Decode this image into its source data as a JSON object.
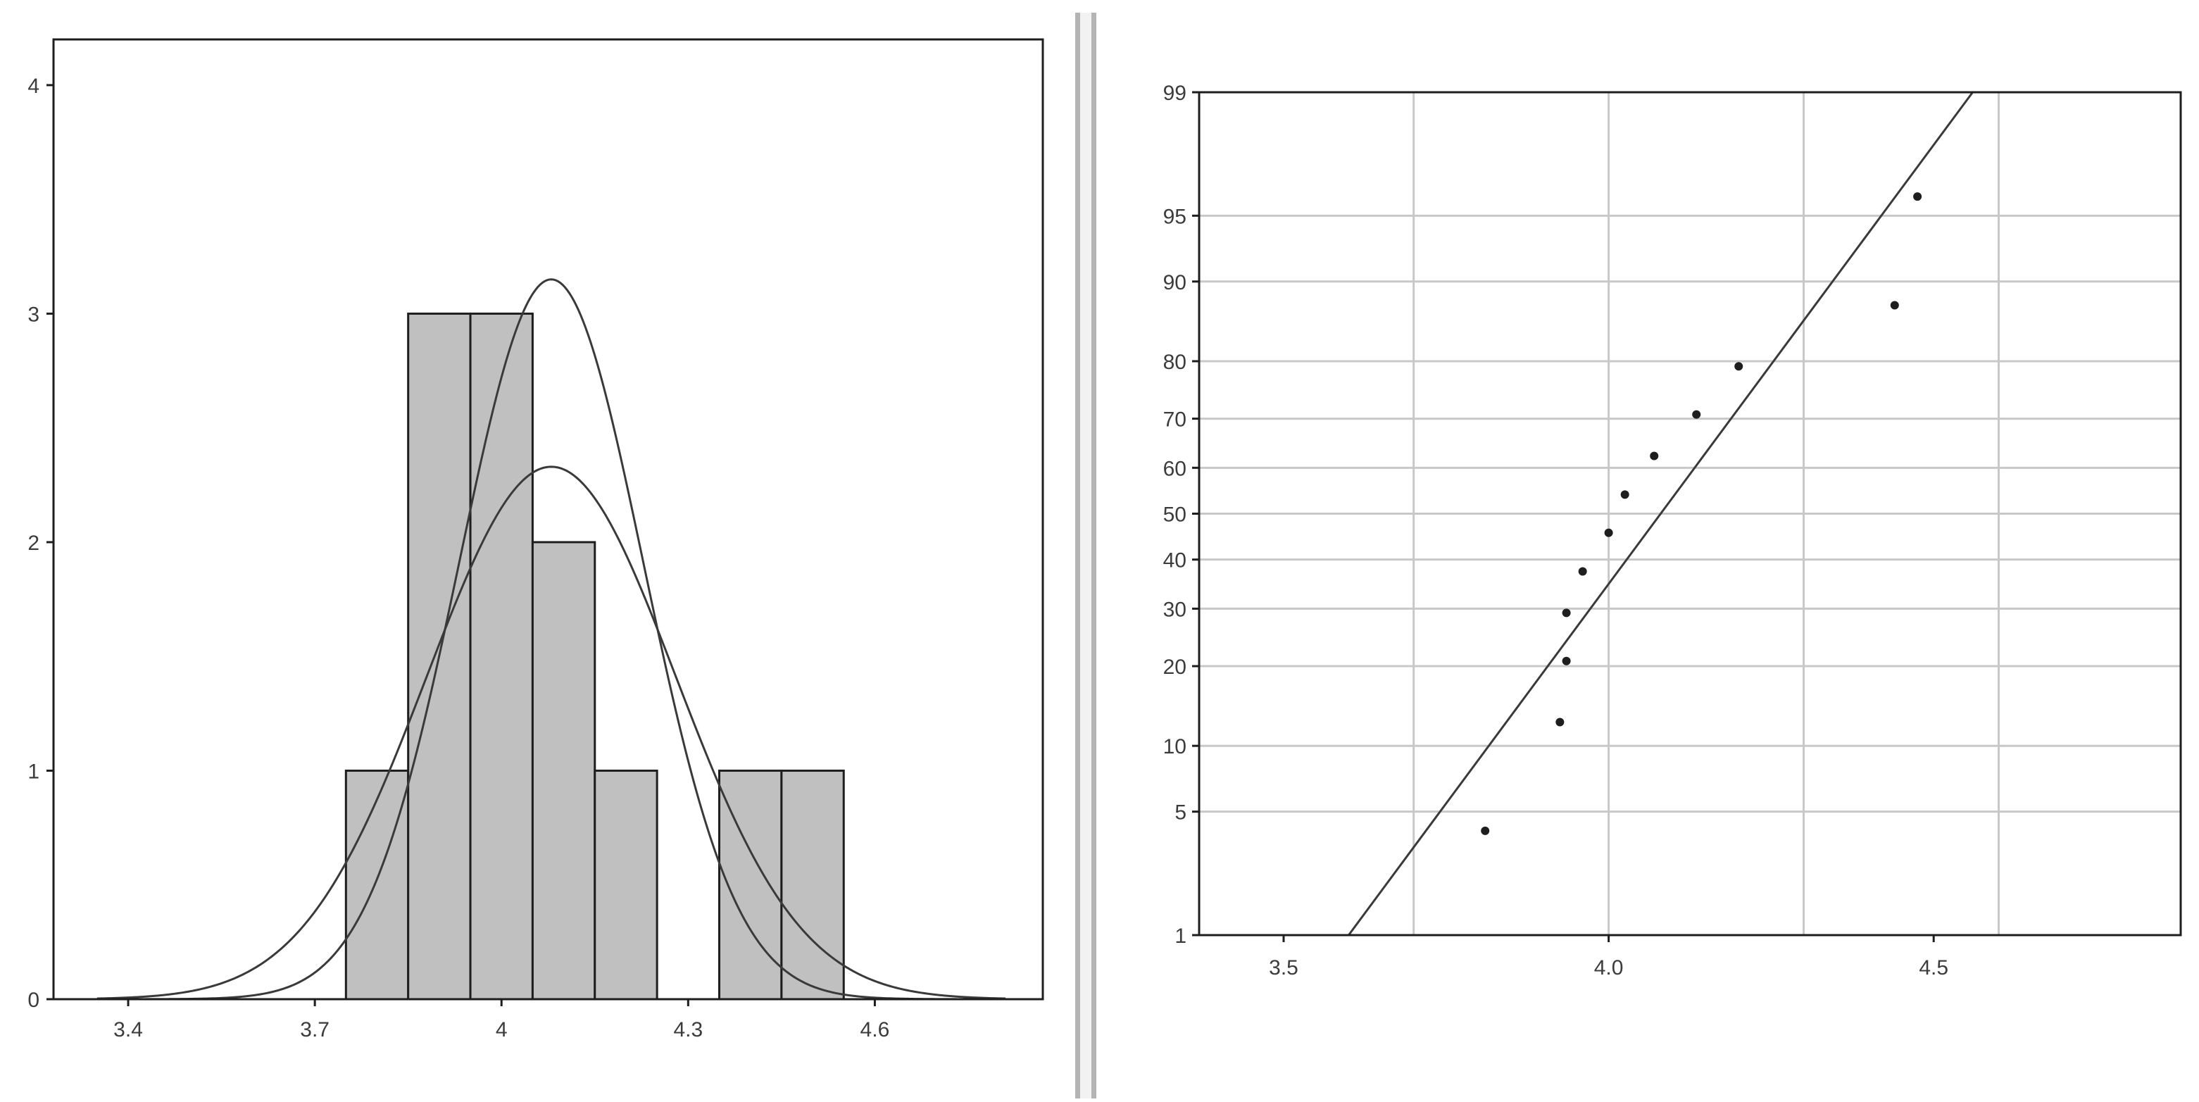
{
  "colors": {
    "background": "#ffffff",
    "frame": "#1e1e1e",
    "bar_fill": "#c0c0c0",
    "bar_stroke": "#1e1e1e",
    "curve": "#3a3a3a",
    "grid": "#c8c8c8",
    "points": "#1e1e1e",
    "tick_text": "#3c3c3c"
  },
  "chart_data": [
    {
      "type": "bar",
      "subtype": "histogram",
      "title": "",
      "xlabel": "",
      "ylabel": "",
      "bin_width": 0.1,
      "bins": [
        {
          "x0": 3.75,
          "x1": 3.85,
          "count": 1
        },
        {
          "x0": 3.85,
          "x1": 3.95,
          "count": 3
        },
        {
          "x0": 3.95,
          "x1": 4.05,
          "count": 3
        },
        {
          "x0": 4.05,
          "x1": 4.15,
          "count": 2
        },
        {
          "x0": 4.15,
          "x1": 4.25,
          "count": 1
        },
        {
          "x0": 4.35,
          "x1": 4.45,
          "count": 1
        },
        {
          "x0": 4.45,
          "x1": 4.55,
          "count": 1
        }
      ],
      "overlay_curves": [
        {
          "kind": "normal density",
          "mean": 4.08,
          "peak": 2.33,
          "sd": 0.2
        },
        {
          "kind": "normal density",
          "mean": 4.08,
          "peak": 3.15,
          "sd": 0.148
        }
      ],
      "xlim": [
        3.28,
        4.87
      ],
      "ylim": [
        0,
        4.2
      ],
      "x_ticks": [
        {
          "value": 3.4,
          "label": "3.4"
        },
        {
          "value": 3.7,
          "label": "3.7"
        },
        {
          "value": 4.0,
          "label": "4"
        },
        {
          "value": 4.3,
          "label": "4.3"
        },
        {
          "value": 4.6,
          "label": "4.6"
        }
      ],
      "y_ticks": [
        {
          "value": 0,
          "label": "0"
        },
        {
          "value": 1,
          "label": "1"
        },
        {
          "value": 2,
          "label": "2"
        },
        {
          "value": 3,
          "label": "3"
        },
        {
          "value": 4,
          "label": "4"
        }
      ],
      "grid": false
    },
    {
      "type": "scatter",
      "subtype": "normal probability plot",
      "title": "",
      "xlabel": "",
      "ylabel": "",
      "y_scale": "normal probability (%)",
      "points": [
        {
          "x": 3.81,
          "y": 4.0
        },
        {
          "x": 3.925,
          "y": 12.5
        },
        {
          "x": 3.935,
          "y": 20.8
        },
        {
          "x": 3.935,
          "y": 29.2
        },
        {
          "x": 3.96,
          "y": 37.5
        },
        {
          "x": 4.0,
          "y": 45.8
        },
        {
          "x": 4.025,
          "y": 54.2
        },
        {
          "x": 4.07,
          "y": 62.5
        },
        {
          "x": 4.135,
          "y": 70.8
        },
        {
          "x": 4.2,
          "y": 79.2
        },
        {
          "x": 4.44,
          "y": 87.5
        },
        {
          "x": 4.475,
          "y": 96.0
        }
      ],
      "fit_line": {
        "x_at_1pct": 3.6,
        "x_at_99pct": 4.56
      },
      "xlim": [
        3.37,
        4.88
      ],
      "ylim": [
        1,
        99
      ],
      "x_ticks": [
        {
          "value": 3.5,
          "label": "3.5"
        },
        {
          "value": 4.0,
          "label": "4.0"
        },
        {
          "value": 4.5,
          "label": "4.5"
        }
      ],
      "x_gridlines": [
        3.7,
        4.0,
        4.3,
        4.6
      ],
      "y_ticks": [
        {
          "value": 1,
          "label": "1"
        },
        {
          "value": 5,
          "label": "5"
        },
        {
          "value": 10,
          "label": "10"
        },
        {
          "value": 20,
          "label": "20"
        },
        {
          "value": 30,
          "label": "30"
        },
        {
          "value": 40,
          "label": "40"
        },
        {
          "value": 50,
          "label": "50"
        },
        {
          "value": 60,
          "label": "60"
        },
        {
          "value": 70,
          "label": "70"
        },
        {
          "value": 80,
          "label": "80"
        },
        {
          "value": 90,
          "label": "90"
        },
        {
          "value": 95,
          "label": "95"
        },
        {
          "value": 99,
          "label": "99"
        }
      ],
      "grid": true
    }
  ]
}
